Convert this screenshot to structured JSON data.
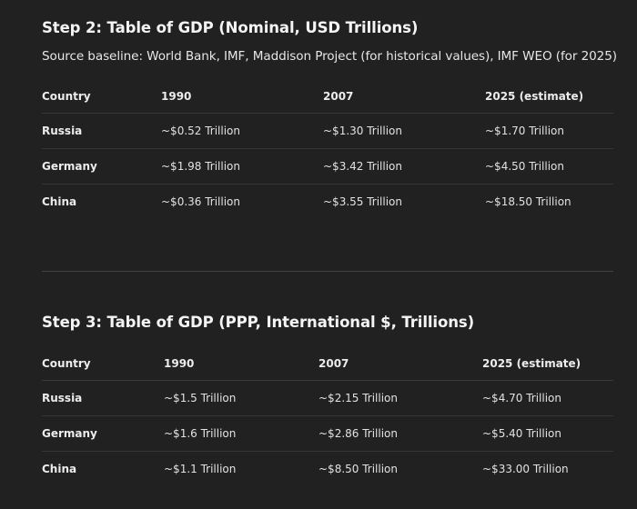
{
  "nominal": {
    "title": "Step 2: Table of GDP (Nominal, USD Trillions)",
    "source": "Source baseline: World Bank, IMF, Maddison Project (for historical values), IMF WEO (for 2025)",
    "headers": [
      "Country",
      "1990",
      "2007",
      "2025 (estimate)"
    ],
    "rows": [
      [
        "Russia",
        "~$0.52 Trillion",
        "~$1.30 Trillion",
        "~$1.70 Trillion"
      ],
      [
        "Germany",
        "~$1.98 Trillion",
        "~$3.42 Trillion",
        "~$4.50 Trillion"
      ],
      [
        "China",
        "~$0.36 Trillion",
        "~$3.55 Trillion",
        "~$18.50 Trillion"
      ]
    ]
  },
  "ppp": {
    "title": "Step 3: Table of GDP (PPP, International $, Trillions)",
    "headers": [
      "Country",
      "1990",
      "2007",
      "2025 (estimate)"
    ],
    "rows": [
      [
        "Russia",
        "~$1.5 Trillion",
        "~$2.15 Trillion",
        "~$4.70 Trillion"
      ],
      [
        "Germany",
        "~$1.6 Trillion",
        "~$2.86 Trillion",
        "~$5.40 Trillion"
      ],
      [
        "China",
        "~$1.1 Trillion",
        "~$8.50 Trillion",
        "~$33.00 Trillion"
      ]
    ]
  }
}
